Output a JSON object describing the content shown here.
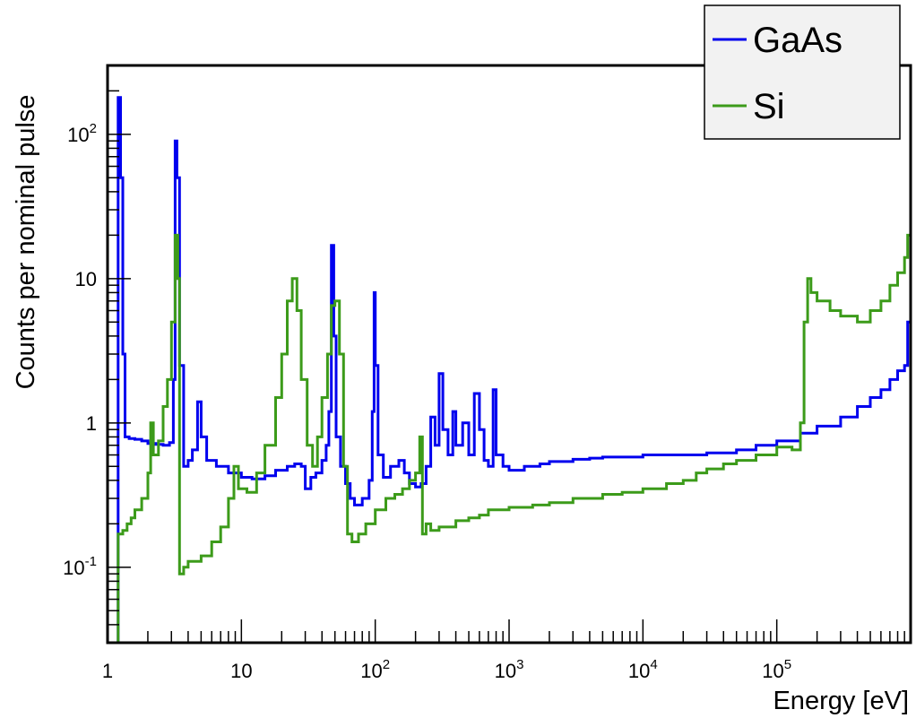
{
  "chart_data": {
    "type": "line",
    "title": "",
    "xlabel": "Energy [eV]",
    "ylabel": "Counts per nominal pulse",
    "x_scale": "log",
    "y_scale": "log",
    "xlim": [
      1,
      1000000
    ],
    "ylim": [
      0.03,
      300
    ],
    "grid": false,
    "legend_position": "top-right",
    "x_ticks": [
      {
        "value": 1,
        "label": "1"
      },
      {
        "value": 10,
        "label": "10"
      },
      {
        "value": 100,
        "label": "10",
        "exp": "2"
      },
      {
        "value": 1000,
        "label": "10",
        "exp": "3"
      },
      {
        "value": 10000,
        "label": "10",
        "exp": "4"
      },
      {
        "value": 100000,
        "label": "10",
        "exp": "5"
      }
    ],
    "y_ticks": [
      {
        "value": 0.1,
        "label": "10",
        "exp": "-1"
      },
      {
        "value": 1,
        "label": "1"
      },
      {
        "value": 10,
        "label": "10"
      },
      {
        "value": 100,
        "label": "10",
        "exp": "2"
      }
    ],
    "series": [
      {
        "name": "GaAs",
        "color": "#0000ee",
        "points": [
          [
            1.1,
            0.02
          ],
          [
            1.12,
            0.03
          ],
          [
            1.17,
            0.03
          ],
          [
            1.2,
            180
          ],
          [
            1.25,
            50
          ],
          [
            1.3,
            3.0
          ],
          [
            1.35,
            0.8
          ],
          [
            1.45,
            0.78
          ],
          [
            1.6,
            0.77
          ],
          [
            1.8,
            0.75
          ],
          [
            2.0,
            0.72
          ],
          [
            2.3,
            0.71
          ],
          [
            2.6,
            0.7
          ],
          [
            2.9,
            0.73
          ],
          [
            3.1,
            2.0
          ],
          [
            3.2,
            90
          ],
          [
            3.3,
            50
          ],
          [
            3.45,
            2.5
          ],
          [
            3.7,
            0.5
          ],
          [
            4.0,
            0.55
          ],
          [
            4.3,
            0.65
          ],
          [
            4.7,
            1.4
          ],
          [
            5.0,
            0.8
          ],
          [
            5.5,
            0.55
          ],
          [
            6.5,
            0.5
          ],
          [
            8,
            0.45
          ],
          [
            10,
            0.42
          ],
          [
            12,
            0.41
          ],
          [
            15,
            0.43
          ],
          [
            18,
            0.47
          ],
          [
            22,
            0.5
          ],
          [
            25,
            0.52
          ],
          [
            28,
            0.5
          ],
          [
            30,
            0.35
          ],
          [
            33,
            0.42
          ],
          [
            36,
            0.45
          ],
          [
            40,
            0.55
          ],
          [
            43,
            0.7
          ],
          [
            45,
            1.2
          ],
          [
            47,
            17
          ],
          [
            49,
            4
          ],
          [
            51,
            0.8
          ],
          [
            55,
            0.5
          ],
          [
            60,
            0.38
          ],
          [
            65,
            0.3
          ],
          [
            70,
            0.27
          ],
          [
            80,
            0.3
          ],
          [
            90,
            0.4
          ],
          [
            95,
            1.2
          ],
          [
            98,
            8
          ],
          [
            100,
            2.5
          ],
          [
            105,
            0.6
          ],
          [
            115,
            0.42
          ],
          [
            130,
            0.5
          ],
          [
            150,
            0.55
          ],
          [
            165,
            0.45
          ],
          [
            180,
            0.38
          ],
          [
            200,
            0.36
          ],
          [
            220,
            0.38
          ],
          [
            240,
            0.5
          ],
          [
            260,
            1.1
          ],
          [
            280,
            0.7
          ],
          [
            300,
            2.2
          ],
          [
            320,
            0.9
          ],
          [
            350,
            0.6
          ],
          [
            380,
            1.2
          ],
          [
            400,
            0.7
          ],
          [
            450,
            1.0
          ],
          [
            500,
            0.6
          ],
          [
            550,
            1.6
          ],
          [
            600,
            0.9
          ],
          [
            650,
            0.55
          ],
          [
            700,
            0.5
          ],
          [
            760,
            1.7
          ],
          [
            800,
            0.6
          ],
          [
            900,
            0.5
          ],
          [
            1000,
            0.47
          ],
          [
            1300,
            0.5
          ],
          [
            1700,
            0.52
          ],
          [
            2000,
            0.54
          ],
          [
            3000,
            0.56
          ],
          [
            4000,
            0.57
          ],
          [
            5000,
            0.58
          ],
          [
            7000,
            0.58
          ],
          [
            10000,
            0.6
          ],
          [
            15000,
            0.6
          ],
          [
            20000,
            0.6
          ],
          [
            30000,
            0.62
          ],
          [
            40000,
            0.62
          ],
          [
            50000,
            0.65
          ],
          [
            70000,
            0.7
          ],
          [
            100000,
            0.75
          ],
          [
            150000,
            0.85
          ],
          [
            200000,
            0.95
          ],
          [
            300000,
            1.1
          ],
          [
            400000,
            1.3
          ],
          [
            500000,
            1.5
          ],
          [
            600000,
            1.7
          ],
          [
            700000,
            2.0
          ],
          [
            800000,
            2.3
          ],
          [
            900000,
            2.5
          ],
          [
            950000,
            5
          ],
          [
            1000000,
            2.6
          ]
        ]
      },
      {
        "name": "Si",
        "color": "#3c9b1a",
        "points": [
          [
            1.1,
            0.02
          ],
          [
            1.15,
            0.03
          ],
          [
            1.2,
            0.17
          ],
          [
            1.3,
            0.18
          ],
          [
            1.4,
            0.2
          ],
          [
            1.5,
            0.22
          ],
          [
            1.6,
            0.25
          ],
          [
            1.8,
            0.3
          ],
          [
            2.0,
            0.45
          ],
          [
            2.1,
            1.0
          ],
          [
            2.2,
            0.6
          ],
          [
            2.4,
            0.75
          ],
          [
            2.6,
            1.3
          ],
          [
            2.8,
            2.0
          ],
          [
            3.0,
            5.0
          ],
          [
            3.2,
            20
          ],
          [
            3.35,
            10
          ],
          [
            3.45,
            0.09
          ],
          [
            3.7,
            0.1
          ],
          [
            4.0,
            0.11
          ],
          [
            5.0,
            0.12
          ],
          [
            6.0,
            0.15
          ],
          [
            7.0,
            0.19
          ],
          [
            8.0,
            0.3
          ],
          [
            8.8,
            0.5
          ],
          [
            9.5,
            0.35
          ],
          [
            11,
            0.33
          ],
          [
            13,
            0.45
          ],
          [
            15,
            0.7
          ],
          [
            18,
            1.5
          ],
          [
            20,
            3.0
          ],
          [
            22,
            7.0
          ],
          [
            24,
            10
          ],
          [
            26,
            6.0
          ],
          [
            28,
            2.0
          ],
          [
            31,
            0.7
          ],
          [
            34,
            0.5
          ],
          [
            37,
            0.8
          ],
          [
            40,
            1.5
          ],
          [
            44,
            3.0
          ],
          [
            47,
            6.5
          ],
          [
            50,
            7.0
          ],
          [
            54,
            3.0
          ],
          [
            58,
            0.5
          ],
          [
            62,
            0.17
          ],
          [
            67,
            0.15
          ],
          [
            75,
            0.17
          ],
          [
            85,
            0.2
          ],
          [
            100,
            0.25
          ],
          [
            120,
            0.3
          ],
          [
            140,
            0.32
          ],
          [
            160,
            0.35
          ],
          [
            180,
            0.4
          ],
          [
            200,
            0.45
          ],
          [
            215,
            0.8
          ],
          [
            225,
            0.17
          ],
          [
            240,
            0.2
          ],
          [
            260,
            0.18
          ],
          [
            300,
            0.19
          ],
          [
            400,
            0.21
          ],
          [
            500,
            0.22
          ],
          [
            600,
            0.23
          ],
          [
            700,
            0.25
          ],
          [
            900,
            0.25
          ],
          [
            1000,
            0.26
          ],
          [
            1500,
            0.27
          ],
          [
            2000,
            0.28
          ],
          [
            3000,
            0.3
          ],
          [
            5000,
            0.32
          ],
          [
            7000,
            0.33
          ],
          [
            10000,
            0.35
          ],
          [
            15000,
            0.38
          ],
          [
            20000,
            0.4
          ],
          [
            25000,
            0.45
          ],
          [
            30000,
            0.48
          ],
          [
            40000,
            0.52
          ],
          [
            50000,
            0.55
          ],
          [
            70000,
            0.6
          ],
          [
            100000,
            0.68
          ],
          [
            130000,
            0.65
          ],
          [
            150000,
            1.0
          ],
          [
            160000,
            5.0
          ],
          [
            170000,
            10
          ],
          [
            180000,
            8.0
          ],
          [
            200000,
            7.0
          ],
          [
            250000,
            6.0
          ],
          [
            300000,
            5.5
          ],
          [
            400000,
            5.0
          ],
          [
            500000,
            6.0
          ],
          [
            600000,
            7.0
          ],
          [
            700000,
            9.0
          ],
          [
            800000,
            11
          ],
          [
            900000,
            14
          ],
          [
            950000,
            20
          ],
          [
            1000000,
            24
          ]
        ]
      }
    ]
  }
}
